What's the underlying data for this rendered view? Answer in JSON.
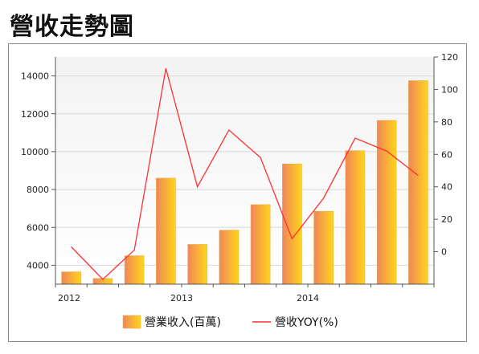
{
  "page": {
    "title": "營收走勢圖"
  },
  "chart_data": {
    "type": "bar",
    "categories": [
      "2012-01",
      "2012-04",
      "2012-07",
      "2012-10",
      "2013-01",
      "2013-04",
      "2013-07",
      "2013-10",
      "2014-01",
      "2014-04",
      "2014-07",
      "2014-10"
    ],
    "x_tick_labels": [
      {
        "label": "2012",
        "category_index": 0
      },
      {
        "label": "2013",
        "category_index": 4
      },
      {
        "label": "2014",
        "category_index": 8
      }
    ],
    "series": [
      {
        "name": "營業收入(百萬)",
        "type": "bar",
        "axis": "left",
        "values": [
          3650,
          3300,
          4500,
          8600,
          5100,
          5850,
          7200,
          9350,
          6850,
          10050,
          11650,
          13750
        ]
      },
      {
        "name": "營收YOY(%)",
        "type": "line",
        "axis": "right",
        "values": [
          3,
          -17,
          1,
          113,
          40,
          75,
          58,
          8,
          33,
          70,
          62,
          47
        ]
      }
    ],
    "y_left": {
      "range": [
        3000,
        15000
      ],
      "ticks": [
        4000,
        6000,
        8000,
        10000,
        12000,
        14000
      ]
    },
    "y_right": {
      "range": [
        -20,
        120
      ],
      "ticks": [
        0,
        20,
        40,
        60,
        80,
        100,
        120
      ]
    },
    "grid": true,
    "legend_position": "bottom",
    "colors": {
      "bar_light": "#ffd21e",
      "bar_dark": "#f08a5a",
      "bar_edge": "#e8b048",
      "line": "#ff3030",
      "grid": "#d8d8d8",
      "plot_bg_top": "#f4f4f4"
    }
  }
}
